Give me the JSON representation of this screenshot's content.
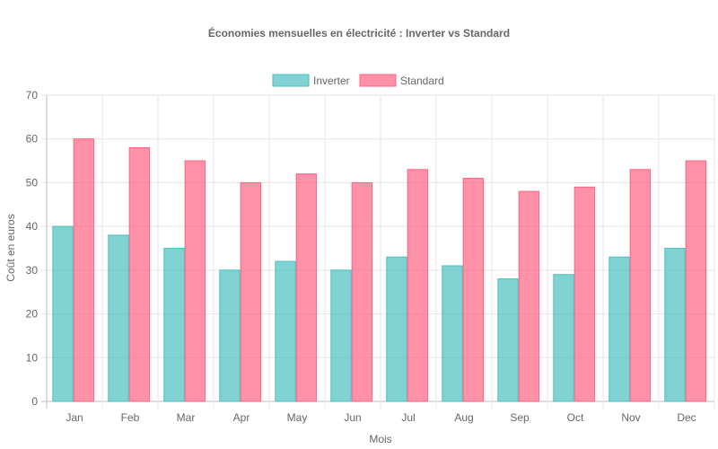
{
  "chart_data": {
    "type": "bar",
    "title": "Économies mensuelles en électricité : Inverter vs Standard",
    "xlabel": "Mois",
    "ylabel": "Coût en euros",
    "categories": [
      "Jan",
      "Feb",
      "Mar",
      "Apr",
      "May",
      "Jun",
      "Jul",
      "Aug",
      "Sep",
      "Oct",
      "Nov",
      "Dec"
    ],
    "ylim": [
      0,
      70
    ],
    "yticks": [
      "0",
      "10",
      "20",
      "30",
      "40",
      "50",
      "60",
      "70"
    ],
    "grid": true,
    "legend_position": "top",
    "series": [
      {
        "name": "Inverter",
        "values": [
          40,
          38,
          35,
          30,
          32,
          30,
          33,
          31,
          28,
          29,
          33,
          35
        ],
        "color": "#4bc0c0"
      },
      {
        "name": "Standard",
        "values": [
          60,
          58,
          55,
          50,
          52,
          50,
          53,
          51,
          48,
          49,
          53,
          55
        ],
        "color": "#ff6384"
      }
    ]
  }
}
